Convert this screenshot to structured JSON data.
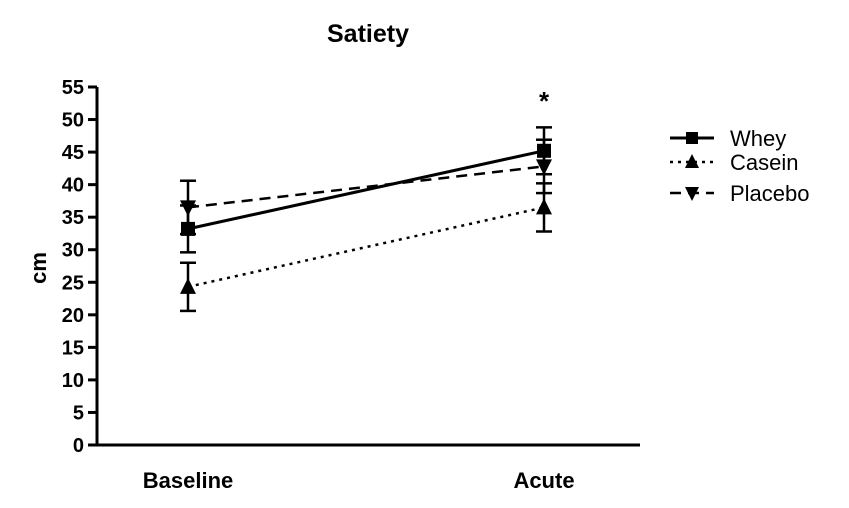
{
  "chart_data": {
    "type": "line",
    "title": "Satiety",
    "ylabel": "cm",
    "xlabel": "",
    "categories": [
      "Baseline",
      "Acute"
    ],
    "ylim": [
      0,
      55
    ],
    "yticks": [
      0,
      5,
      10,
      15,
      20,
      25,
      30,
      35,
      40,
      45,
      50,
      55
    ],
    "series": [
      {
        "name": "Whey",
        "values": [
          33.2,
          45.2
        ],
        "errors": [
          3.6,
          3.6
        ],
        "marker": "square",
        "dash": "solid"
      },
      {
        "name": "Casein",
        "values": [
          24.3,
          36.5
        ],
        "errors": [
          3.7,
          3.7
        ],
        "marker": "triangle-up",
        "dash": "dotted"
      },
      {
        "name": "Placebo",
        "values": [
          36.5,
          42.8
        ],
        "errors": [
          4.1,
          4.1
        ],
        "marker": "triangle-down",
        "dash": "dashed"
      }
    ],
    "annotations": [
      {
        "text": "*",
        "category": "Acute"
      }
    ],
    "legend_position": "right"
  }
}
